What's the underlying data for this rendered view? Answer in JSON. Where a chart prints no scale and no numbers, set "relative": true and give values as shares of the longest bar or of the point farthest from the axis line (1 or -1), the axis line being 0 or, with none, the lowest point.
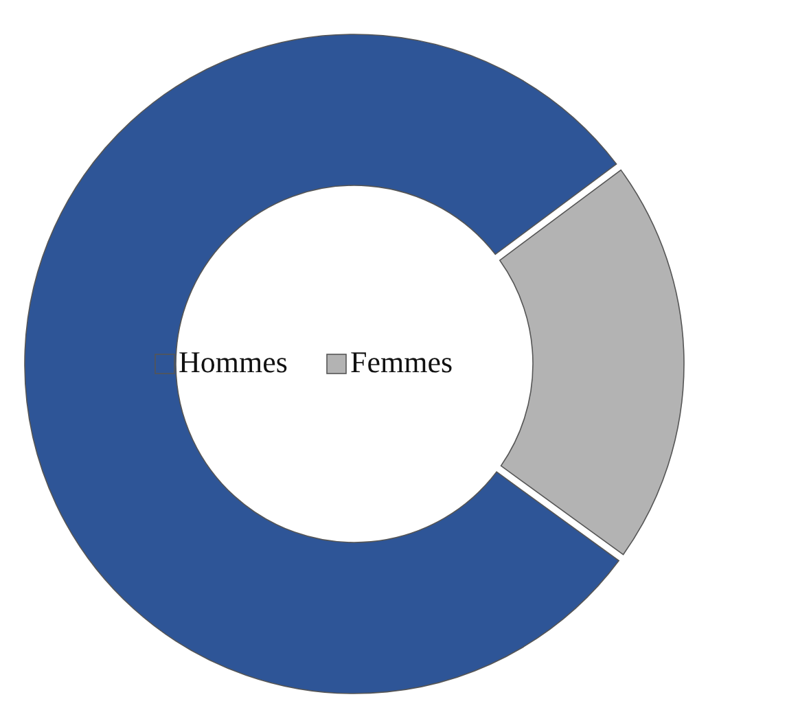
{
  "chart_data": {
    "type": "donut",
    "relative": true,
    "categories": [
      "Hommes",
      "Femmes"
    ],
    "values": [
      80,
      20
    ],
    "colors": [
      "#2e5597",
      "#b3b3b3"
    ],
    "legend": "center"
  }
}
